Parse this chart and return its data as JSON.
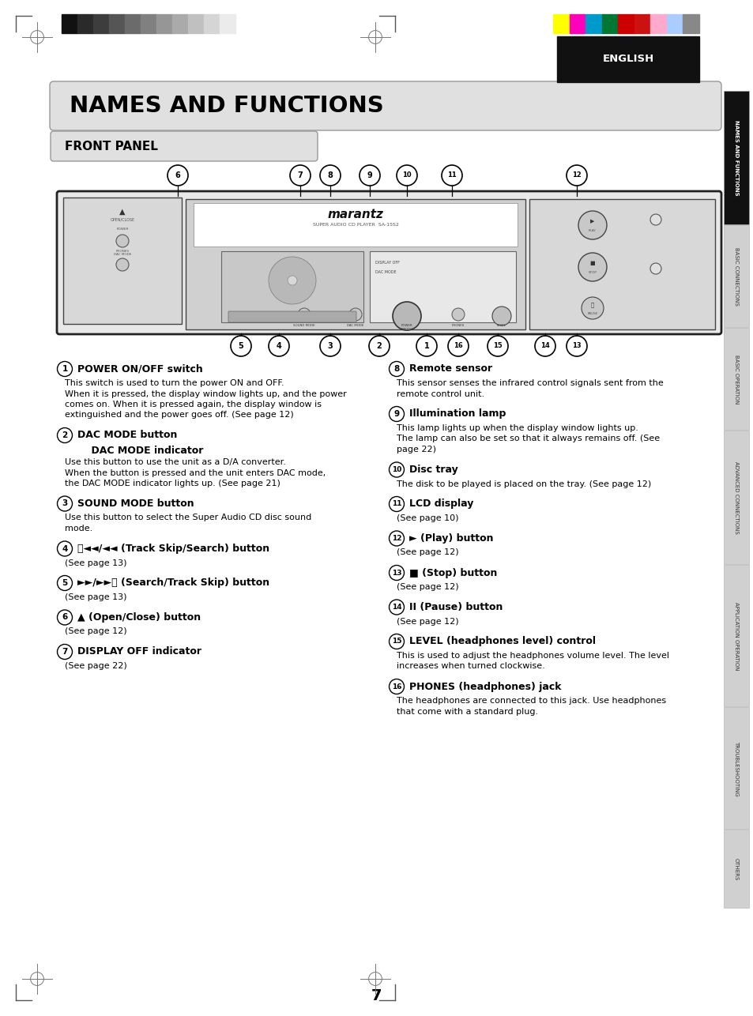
{
  "title": "NAMES AND FUNCTIONS",
  "subtitle": "FRONT PANEL",
  "page_number": "7",
  "tab_labels": [
    "NAMES AND FUNCTIONS",
    "BASIC CONNECTIONS",
    "BASIC OPERATION",
    "ADVANCED CONNECTIONS",
    "APPLICATION OPERATION",
    "TROUBLESHOOTING",
    "OTHERS"
  ],
  "english_label": "ENGLISH",
  "color_bars_left": [
    "#111111",
    "#2a2a2a",
    "#3d3d3d",
    "#555555",
    "#6b6b6b",
    "#808080",
    "#969696",
    "#aaaaaa",
    "#c0c0c0",
    "#d5d5d5",
    "#ebebeb"
  ],
  "color_bars_right": [
    "#ffff00",
    "#ff00bb",
    "#0077cc",
    "#007733",
    "#cc0000",
    "#bb0000",
    "#ffaacc",
    "#aaccff",
    "#888888"
  ],
  "left_items": [
    {
      "num": "1",
      "title": "POWER ON/OFF switch",
      "title2": null,
      "body": "This switch is used to turn the power ON and OFF.\nWhen it is pressed, the display window lights up, and the power\ncomes on. When it is pressed again, the display window is\nextinguished and the power goes off. (See page 12)"
    },
    {
      "num": "2",
      "title": "DAC MODE button",
      "title2": "    DAC MODE indicator",
      "body": "Use this button to use the unit as a D/A converter.\nWhen the button is pressed and the unit enters DAC mode,\nthe DAC MODE indicator lights up. (See page 21)"
    },
    {
      "num": "3",
      "title": "SOUND MODE button",
      "title2": null,
      "body": "Use this button to select the Super Audio CD disc sound\nmode."
    },
    {
      "num": "4",
      "title": "⧀◄◄/◄◄ (Track Skip/Search) button",
      "title2": null,
      "body": "(See page 13)"
    },
    {
      "num": "5",
      "title": "►►/►►⧁ (Search/Track Skip) button",
      "title2": null,
      "body": "(See page 13)"
    },
    {
      "num": "6",
      "title": "▲ (Open/Close) button",
      "title2": null,
      "body": "(See page 12)"
    },
    {
      "num": "7",
      "title": "DISPLAY OFF indicator",
      "title2": null,
      "body": "(See page 22)"
    }
  ],
  "right_items": [
    {
      "num": "8",
      "title": "Remote sensor",
      "body": "This sensor senses the infrared control signals sent from the\nremote control unit."
    },
    {
      "num": "9",
      "title": "Illumination lamp",
      "body": "This lamp lights up when the display window lights up.\nThe lamp can also be set so that it always remains off. (See\npage 22)"
    },
    {
      "num": "10",
      "title": "Disc tray",
      "body": "The disk to be played is placed on the tray. (See page 12)"
    },
    {
      "num": "11",
      "title": "LCD display",
      "body": "(See page 10)"
    },
    {
      "num": "12",
      "title": "► (Play) button",
      "body": "(See page 12)"
    },
    {
      "num": "13",
      "title": "■ (Stop) button",
      "body": "(See page 12)"
    },
    {
      "num": "14",
      "title": "II (Pause) button",
      "body": "(See page 12)"
    },
    {
      "num": "15",
      "title": "LEVEL (headphones level) control",
      "body": "This is used to adjust the headphones volume level. The level\nincreases when turned clockwise."
    },
    {
      "num": "16",
      "title": "PHONES (headphones) jack",
      "body": "The headphones are connected to this jack. Use headphones\nthat come with a standard plug."
    }
  ]
}
